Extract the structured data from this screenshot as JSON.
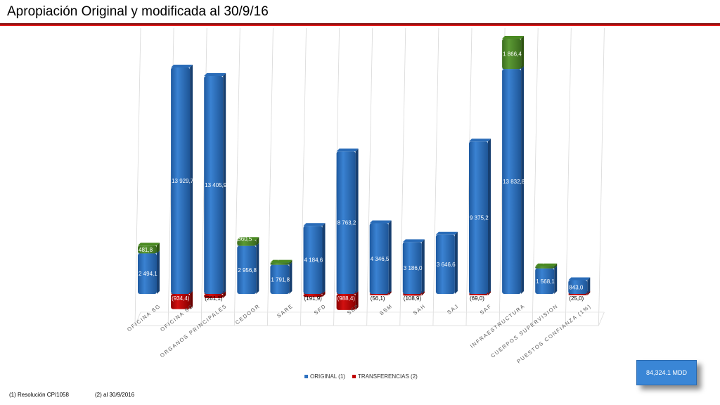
{
  "title": "Apropiación Original y modificada al 30/9/16",
  "legend": {
    "original": "ORIGINAL (1)",
    "transfer": "TRANSFERENCIAS (2)"
  },
  "total": "84,324.1 MDD",
  "footnotes": {
    "note1": "(1) Resolución CP/1058",
    "note2": "(2) al 30/9/2016"
  },
  "colors": {
    "original": "#2f72c0",
    "transfer_positive": "#4e8a2a",
    "transfer_negative": "#c00000",
    "title_rule": "#e31b1b"
  },
  "chart_data": {
    "type": "bar",
    "stacked": true,
    "categories": [
      "OFICINA SG",
      "OFICINA SG",
      "ORGANOS PRINCIPALES",
      "CEDOGR",
      "SARE",
      "SFD",
      "SEP",
      "SSM",
      "SAH",
      "SAJ",
      "SAF",
      "INFRAESTRUCTURA",
      "CUERPOS SUPERVISION",
      "PUESTOS CONFIANZA (1%)"
    ],
    "series": [
      {
        "name": "ORIGINAL (1)",
        "values": [
          2494.1,
          13929.7,
          13405.9,
          2956.8,
          1791.8,
          4184.6,
          8763.2,
          4346.5,
          3186.0,
          3646.6,
          9375.2,
          13832.8,
          1568.1,
          843.0
        ],
        "labels": [
          "2 494,1",
          "13 929,7",
          "13 405,9",
          "2 956,8",
          "1 791,8",
          "4 184,6",
          "8 763,2",
          "4 346,5",
          "3 186,0",
          "3 646,6",
          "9 375,2",
          "13 832,8",
          "1 568,1",
          "843,0"
        ]
      },
      {
        "name": "TRANSFERENCIAS (2)",
        "values": [
          481.8,
          -934.4,
          -261.1,
          360.5,
          56.1,
          -191.9,
          -988.4,
          -56.1,
          -108.9,
          0,
          -69.0,
          1866.4,
          27.2,
          -25.0
        ],
        "labels": [
          "481,8",
          "(934,4)",
          "(261,1)",
          "360,5",
          "56,1",
          "(191,9)",
          "(988,4)",
          "(56,1)",
          "(108,9)",
          "",
          "(69,0)",
          "1 866,4",
          "27,2",
          "(25,0)"
        ]
      }
    ],
    "ylim": [
      -1500,
      16000
    ],
    "grid": false,
    "legend_position": "bottom"
  }
}
